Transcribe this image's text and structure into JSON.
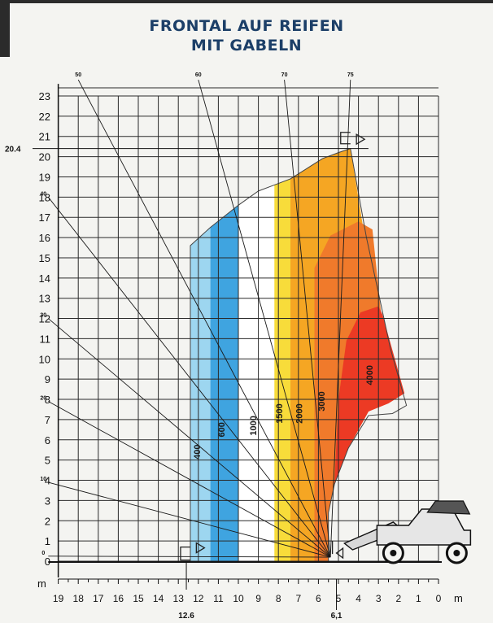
{
  "chart_data": {
    "type": "area",
    "title_line_1": "FRONTAL AUF REIFEN",
    "title_line_2": "MIT GABELN",
    "xlabel": "m",
    "ylabel": "m",
    "xlim": [
      19,
      0
    ],
    "ylim": [
      0,
      23
    ],
    "x_ticks": [
      19,
      18,
      17,
      16,
      15,
      14,
      13,
      12,
      11,
      10,
      9,
      8,
      7,
      6,
      5,
      4,
      3,
      2,
      1,
      0
    ],
    "y_ticks": [
      0,
      1,
      2,
      3,
      4,
      5,
      6,
      7,
      8,
      9,
      10,
      11,
      12,
      13,
      14,
      15,
      16,
      17,
      18,
      19,
      20,
      21,
      22,
      23
    ],
    "grid": true,
    "extra_labels": {
      "max_height": "20.4",
      "max_reach": "12.6",
      "min_reach": "6,1"
    },
    "boom_angles": [
      {
        "label": "0",
        "x": 19.5,
        "y": 0.25
      },
      {
        "label": "10",
        "x": 19.5,
        "y": 3.9
      },
      {
        "label": "20",
        "x": 19.5,
        "y": 7.9
      },
      {
        "label": "30",
        "x": 19.5,
        "y": 12.0
      },
      {
        "label": "40",
        "x": 19.5,
        "y": 18.0
      },
      {
        "label": "50",
        "x": 18.0,
        "y": 23.8
      },
      {
        "label": "60",
        "x": 12.0,
        "y": 23.8
      },
      {
        "label": "70",
        "x": 7.7,
        "y": 23.8
      },
      {
        "label": "75",
        "x": 4.4,
        "y": 23.8
      }
    ],
    "boom_pivot": {
      "x": 5.4,
      "y": 0.2
    },
    "load_zones": [
      {
        "label": "400",
        "color": "#9dd6f0",
        "boundary": [
          [
            12.4,
            0
          ],
          [
            12.4,
            15.6
          ],
          [
            12.0,
            16.0
          ],
          [
            11.4,
            16.5
          ],
          [
            11.4,
            0
          ]
        ]
      },
      {
        "label": "600",
        "color": "#3fa4e0",
        "boundary": [
          [
            11.4,
            0
          ],
          [
            11.4,
            16.5
          ],
          [
            10.0,
            17.6
          ],
          [
            10.0,
            0
          ]
        ]
      },
      {
        "label": "1000",
        "color": "#ffffff",
        "boundary": [
          [
            10.0,
            0
          ],
          [
            10.0,
            17.6
          ],
          [
            9.0,
            18.3
          ],
          [
            8.2,
            18.6
          ],
          [
            8.2,
            0
          ]
        ]
      },
      {
        "label": "1500",
        "color": "#f8dc3a",
        "boundary": [
          [
            8.2,
            0
          ],
          [
            8.2,
            18.6
          ],
          [
            7.4,
            18.9
          ],
          [
            7.4,
            0
          ]
        ]
      },
      {
        "label": "2000",
        "color": "#f5a623",
        "boundary": [
          [
            7.4,
            0
          ],
          [
            7.4,
            18.9
          ],
          [
            6.6,
            19.4
          ],
          [
            5.8,
            19.9
          ],
          [
            5.0,
            20.2
          ],
          [
            4.4,
            20.4
          ],
          [
            2.5,
            8.7
          ],
          [
            3.5,
            7.4
          ],
          [
            4.5,
            5.6
          ],
          [
            5.2,
            3.8
          ],
          [
            5.5,
            2.4
          ],
          [
            5.5,
            0
          ]
        ]
      },
      {
        "label": "3000",
        "color": "#f07a2b",
        "boundary": [
          [
            6.2,
            0
          ],
          [
            6.2,
            14.5
          ],
          [
            5.4,
            16.1
          ],
          [
            4.0,
            16.8
          ],
          [
            3.3,
            16.4
          ],
          [
            2.5,
            8.7
          ],
          [
            3.5,
            7.4
          ],
          [
            4.5,
            5.6
          ],
          [
            5.2,
            3.8
          ],
          [
            5.5,
            2.4
          ],
          [
            5.5,
            0
          ]
        ]
      },
      {
        "label": "4000",
        "color": "#ec3a24",
        "boundary": [
          [
            4.6,
            10.9
          ],
          [
            3.9,
            12.3
          ],
          [
            3.0,
            12.6
          ],
          [
            2.8,
            12.2
          ],
          [
            1.7,
            8.3
          ],
          [
            2.5,
            7.8
          ],
          [
            3.5,
            7.4
          ],
          [
            4.5,
            5.6
          ],
          [
            5.2,
            3.8
          ],
          [
            5.0,
            8.0
          ]
        ]
      }
    ]
  }
}
